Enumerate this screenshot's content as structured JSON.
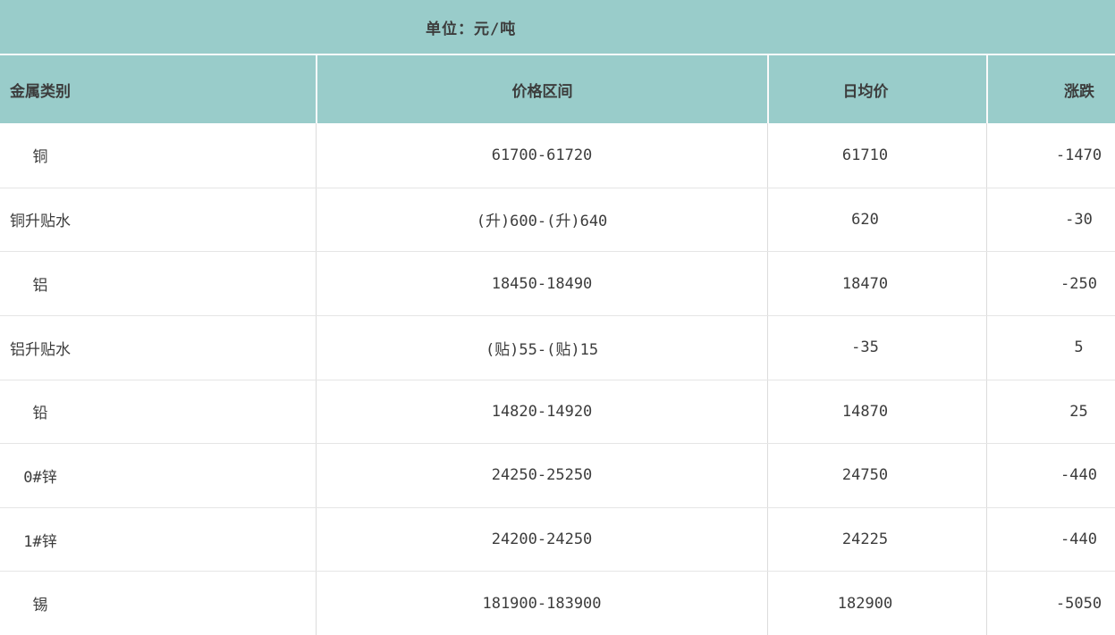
{
  "topbar": {
    "unit_label": "单位：元/吨"
  },
  "colors": {
    "header_bg": "#99ccca",
    "text": "#3c3c3c",
    "header_divider": "#fafafa",
    "grid_vertical": "#dcdcdc",
    "grid_horizontal": "#e5e5e5"
  },
  "chart_data": {
    "type": "table",
    "title": "单位：元/吨",
    "columns": [
      "金属类别",
      "价格区间",
      "日均价",
      "涨跌"
    ],
    "rows": [
      [
        "铜",
        "61700-61720",
        "61710",
        "-1470"
      ],
      [
        "铜升贴水",
        "(升)600-(升)640",
        "620",
        "-30"
      ],
      [
        "铝",
        "18450-18490",
        "18470",
        "-250"
      ],
      [
        "铝升贴水",
        "(贴)55-(贴)15",
        "-35",
        "5"
      ],
      [
        "铅",
        "14820-14920",
        "14870",
        "25"
      ],
      [
        "0#锌",
        "24250-25250",
        "24750",
        "-440"
      ],
      [
        "1#锌",
        "24200-24250",
        "24225",
        "-440"
      ],
      [
        "锡",
        "181900-183900",
        "182900",
        "-5050"
      ]
    ]
  }
}
